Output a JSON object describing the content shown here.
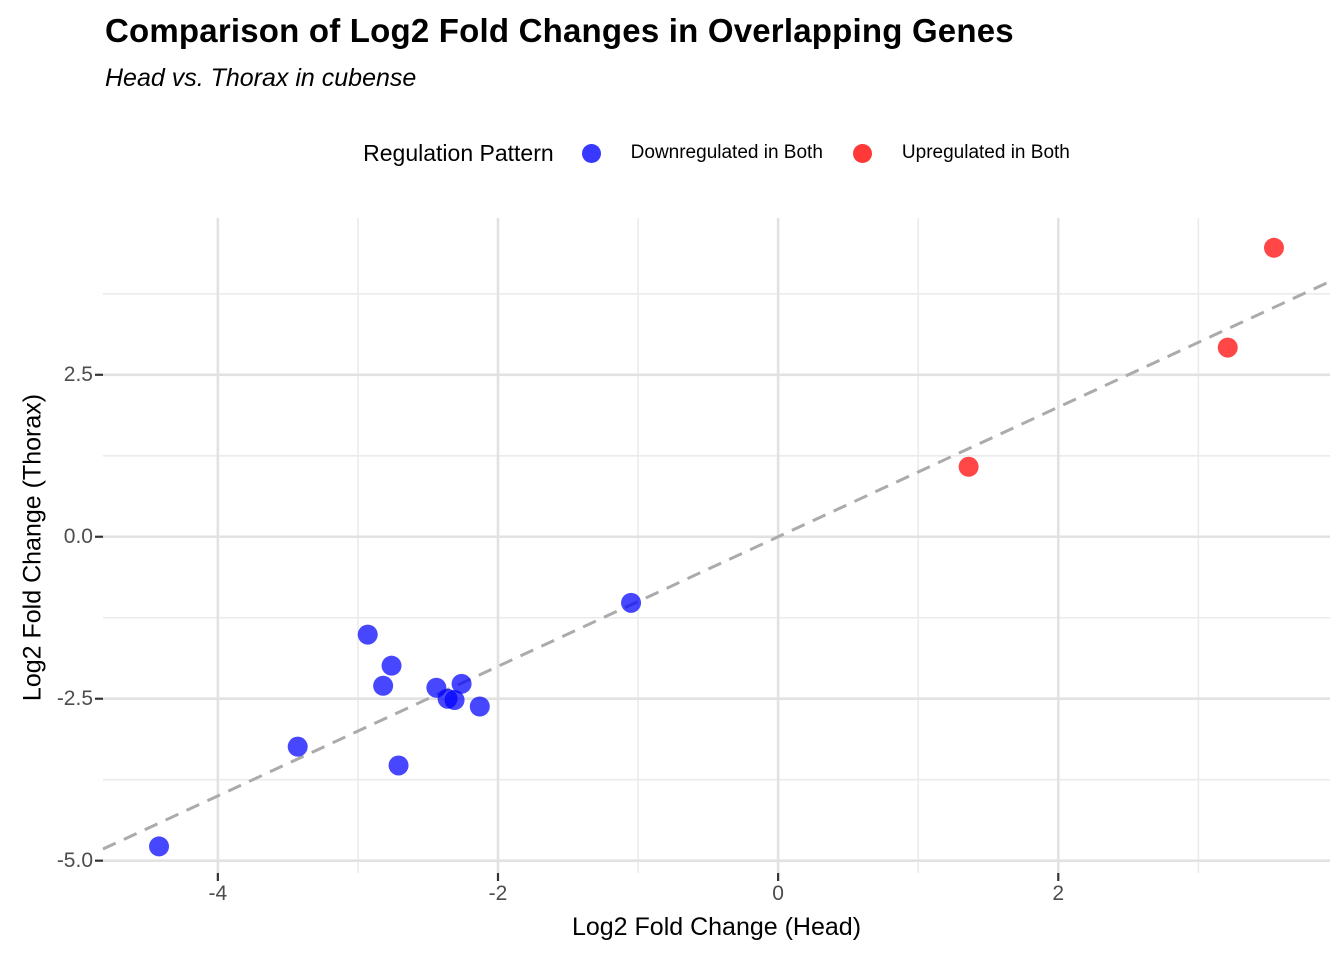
{
  "title": "Comparison of Log2 Fold Changes in Overlapping Genes",
  "subtitle": "Head vs. Thorax in cubense",
  "legend": {
    "title": "Regulation Pattern",
    "items": [
      {
        "label": "Downregulated in Both",
        "color": "#0000FF"
      },
      {
        "label": "Upregulated in Both",
        "color": "#FF0000"
      }
    ]
  },
  "chart_data": {
    "type": "scatter",
    "title": "Comparison of Log2 Fold Changes in Overlapping Genes",
    "subtitle": "Head vs. Thorax in cubense",
    "xlabel": "Log2 Fold Change (Head)",
    "ylabel": "Log2 Fold Change (Thorax)",
    "xlim": [
      -4.82,
      3.94
    ],
    "ylim": [
      -5.19,
      4.92
    ],
    "grid": {
      "major_color": "#E2E2E2",
      "minor_color": "#EBEBEB",
      "background": "#FFFFFF"
    },
    "x_ticks": {
      "major": [
        {
          "value": -4,
          "label": "-4"
        },
        {
          "value": -2,
          "label": "-2"
        },
        {
          "value": 0,
          "label": "0"
        },
        {
          "value": 2,
          "label": "2"
        }
      ],
      "minor": [
        -3,
        -1,
        1,
        3
      ]
    },
    "y_ticks": {
      "major": [
        {
          "value": 2.5,
          "label": "2.5"
        },
        {
          "value": 0,
          "label": "0.0"
        },
        {
          "value": -2.5,
          "label": "-2.5"
        },
        {
          "value": -5,
          "label": "-5.0"
        }
      ],
      "minor": [
        3.75,
        1.25,
        -1.25,
        -3.75
      ]
    },
    "reference_line": {
      "type": "identity",
      "slope": 1,
      "intercept": 0,
      "style": "dashed",
      "color": "#ABABAB"
    },
    "point_radius": 10,
    "point_alpha": 0.72,
    "legend_position": "top",
    "series": [
      {
        "name": "Downregulated in Both",
        "color": "#0000FF",
        "points": [
          {
            "x": -4.42,
            "y": -4.78
          },
          {
            "x": -3.43,
            "y": -3.24
          },
          {
            "x": -2.93,
            "y": -1.51
          },
          {
            "x": -2.82,
            "y": -2.3
          },
          {
            "x": -2.76,
            "y": -1.99
          },
          {
            "x": -2.71,
            "y": -3.53
          },
          {
            "x": -2.44,
            "y": -2.33
          },
          {
            "x": -2.36,
            "y": -2.5
          },
          {
            "x": -2.31,
            "y": -2.52
          },
          {
            "x": -2.26,
            "y": -2.27
          },
          {
            "x": -2.13,
            "y": -2.62
          },
          {
            "x": -1.05,
            "y": -1.02
          }
        ]
      },
      {
        "name": "Upregulated in Both",
        "color": "#FF0000",
        "points": [
          {
            "x": 1.36,
            "y": 1.08
          },
          {
            "x": 3.21,
            "y": 2.92
          },
          {
            "x": 3.54,
            "y": 4.46
          }
        ]
      }
    ]
  }
}
